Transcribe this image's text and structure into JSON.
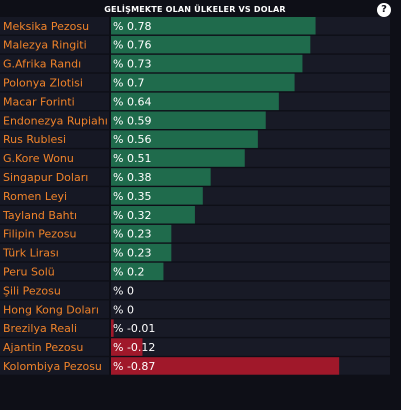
{
  "header": {
    "title": "GELİŞMEKTE OLAN ÜLKELER VS DOLAR",
    "help_label": "?"
  },
  "colors": {
    "positive": "#1f6b4c",
    "negative": "#a0182a",
    "track": "#181a26",
    "label": "#f0832a",
    "value_text": "#ffffff"
  },
  "chart_data": {
    "type": "bar",
    "orientation": "horizontal",
    "title": "GELİŞMEKTE OLAN ÜLKELER VS DOLAR",
    "value_prefix": "% ",
    "xlim": [
      0,
      0.98
    ],
    "categories": [
      "Meksika Pezosu",
      "Malezya Ringiti",
      "G.Afrika Randı",
      "Polonya Zlotisi",
      "Macar Forinti",
      "Endonezya Rupiahı",
      "Rus Rublesi",
      "G.Kore Wonu",
      "Singapur Doları",
      "Romen Leyi",
      "Tayland Bahtı",
      "Filipin Pezosu",
      "Türk Lirası",
      "Peru Solü",
      "Şili Pezosu",
      "Hong Kong Doları",
      "Brezilya Reali",
      "Ajantin Pezosu",
      "Kolombiya Pezosu"
    ],
    "values": [
      0.78,
      0.76,
      0.73,
      0.7,
      0.64,
      0.59,
      0.56,
      0.51,
      0.38,
      0.35,
      0.32,
      0.23,
      0.23,
      0.2,
      0,
      0,
      -0.01,
      -0.12,
      -0.87
    ],
    "value_labels": [
      "0.78",
      "0.76",
      "0.73",
      "0.7",
      "0.64",
      "0.59",
      "0.56",
      "0.51",
      "0.38",
      "0.35",
      "0.32",
      "0.23",
      "0.23",
      "0.2",
      "0",
      "0",
      "-0.01",
      "-0.12",
      "-0.87"
    ]
  }
}
